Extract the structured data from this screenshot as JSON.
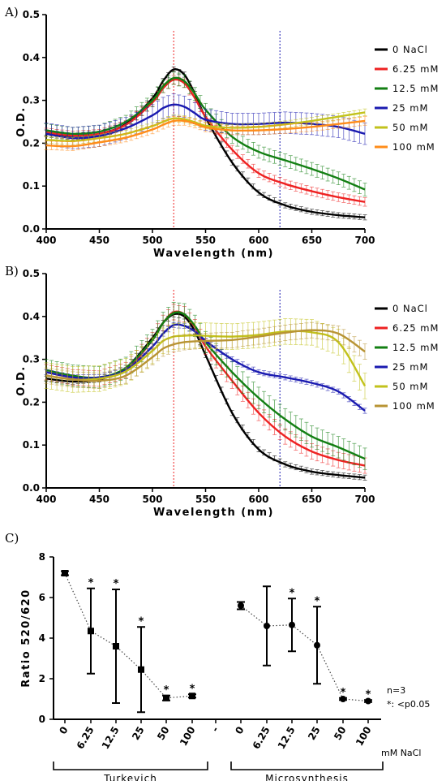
{
  "colors": {
    "0 NaCl": "#000000",
    "6.25 mM": "#ee2222",
    "12.5 mM": "#137f13",
    "25 mM": "#1a1ab0",
    "50 mM": "#c2c21c",
    "100 mM A": "#ff8c1a",
    "100 mM B": "#b89434"
  },
  "chart_data": [
    {
      "type": "line",
      "panel": "A)",
      "xlabel": "Wavelength (nm)",
      "ylabel": "O.D.",
      "xlim": [
        400,
        700
      ],
      "ylim": [
        0,
        0.5
      ],
      "xticks": [
        "400",
        "450",
        "500",
        "550",
        "600",
        "650",
        "700"
      ],
      "yticks": [
        "0.0",
        "0.1",
        "0.2",
        "0.3",
        "0.4",
        "0.5"
      ],
      "reference_lines": [
        520,
        620
      ],
      "legend_position": "right",
      "x": [
        400,
        425,
        450,
        475,
        500,
        510,
        520,
        530,
        540,
        550,
        575,
        600,
        625,
        650,
        675,
        700
      ],
      "series": [
        {
          "name": "0 NaCl",
          "color_key": "0 NaCl",
          "values": [
            0.225,
            0.217,
            0.222,
            0.245,
            0.305,
            0.345,
            0.372,
            0.36,
            0.315,
            0.26,
            0.155,
            0.085,
            0.055,
            0.04,
            0.032,
            0.027
          ],
          "err": 0.006
        },
        {
          "name": "6.25 mM",
          "color_key": "6.25 mM",
          "values": [
            0.225,
            0.218,
            0.222,
            0.243,
            0.295,
            0.328,
            0.348,
            0.34,
            0.305,
            0.262,
            0.185,
            0.13,
            0.105,
            0.088,
            0.074,
            0.063
          ],
          "err": 0.01
        },
        {
          "name": "12.5 mM",
          "color_key": "12.5 mM",
          "values": [
            0.23,
            0.222,
            0.227,
            0.25,
            0.3,
            0.333,
            0.352,
            0.345,
            0.315,
            0.278,
            0.215,
            0.18,
            0.16,
            0.14,
            0.118,
            0.092
          ],
          "err": 0.015
        },
        {
          "name": "25 mM",
          "color_key": "25 mM",
          "values": [
            0.222,
            0.212,
            0.217,
            0.235,
            0.265,
            0.282,
            0.29,
            0.285,
            0.27,
            0.255,
            0.245,
            0.245,
            0.248,
            0.245,
            0.238,
            0.222
          ],
          "err": 0.025
        },
        {
          "name": "50 mM",
          "color_key": "50 mM",
          "values": [
            0.208,
            0.205,
            0.212,
            0.222,
            0.24,
            0.25,
            0.258,
            0.256,
            0.249,
            0.241,
            0.236,
            0.238,
            0.244,
            0.252,
            0.262,
            0.272
          ],
          "err": 0.008
        },
        {
          "name": "100 mM",
          "color_key": "100 mM A",
          "values": [
            0.195,
            0.193,
            0.202,
            0.213,
            0.232,
            0.243,
            0.252,
            0.252,
            0.246,
            0.237,
            0.23,
            0.23,
            0.233,
            0.238,
            0.245,
            0.252
          ],
          "err": 0.01
        }
      ]
    },
    {
      "type": "line",
      "panel": "B)",
      "xlabel": "Wavelength (nm)",
      "ylabel": "O.D.",
      "xlim": [
        400,
        700
      ],
      "ylim": [
        0,
        0.5
      ],
      "xticks": [
        "400",
        "450",
        "500",
        "550",
        "600",
        "650",
        "700"
      ],
      "yticks": [
        "0.0",
        "0.1",
        "0.2",
        "0.3",
        "0.4",
        "0.5"
      ],
      "reference_lines": [
        520,
        620
      ],
      "legend_position": "right",
      "x": [
        400,
        425,
        450,
        475,
        500,
        510,
        520,
        530,
        540,
        550,
        575,
        600,
        625,
        650,
        675,
        700
      ],
      "series": [
        {
          "name": "0 NaCl",
          "color_key": "0 NaCl",
          "values": [
            0.255,
            0.248,
            0.253,
            0.28,
            0.35,
            0.385,
            0.405,
            0.4,
            0.365,
            0.31,
            0.175,
            0.09,
            0.055,
            0.038,
            0.03,
            0.024
          ],
          "err": 0.006
        },
        {
          "name": "6.25 mM",
          "color_key": "6.25 mM",
          "values": [
            0.27,
            0.258,
            0.255,
            0.275,
            0.345,
            0.385,
            0.41,
            0.405,
            0.375,
            0.33,
            0.25,
            0.175,
            0.12,
            0.085,
            0.065,
            0.052
          ],
          "err": 0.018
        },
        {
          "name": "12.5 mM",
          "color_key": "12.5 mM",
          "values": [
            0.275,
            0.262,
            0.258,
            0.28,
            0.345,
            0.385,
            0.408,
            0.405,
            0.378,
            0.34,
            0.27,
            0.21,
            0.16,
            0.12,
            0.095,
            0.068
          ],
          "err": 0.025
        },
        {
          "name": "25 mM",
          "color_key": "25 mM",
          "values": [
            0.27,
            0.258,
            0.258,
            0.275,
            0.33,
            0.36,
            0.38,
            0.378,
            0.365,
            0.343,
            0.3,
            0.27,
            0.258,
            0.245,
            0.225,
            0.18
          ],
          "err": 0.006
        },
        {
          "name": "50 mM",
          "color_key": "50 mM",
          "values": [
            0.262,
            0.253,
            0.255,
            0.272,
            0.32,
            0.343,
            0.353,
            0.355,
            0.356,
            0.355,
            0.353,
            0.357,
            0.365,
            0.363,
            0.34,
            0.238
          ],
          "err": 0.03
        },
        {
          "name": "100 mM",
          "color_key": "100 mM B",
          "values": [
            0.262,
            0.253,
            0.25,
            0.262,
            0.305,
            0.325,
            0.335,
            0.34,
            0.342,
            0.343,
            0.345,
            0.353,
            0.362,
            0.368,
            0.36,
            0.318
          ],
          "err": 0.018
        }
      ]
    },
    {
      "type": "scatter",
      "panel": "C)",
      "ylabel": "Ratio 520/620",
      "ylim": [
        0,
        8
      ],
      "yticks": [
        "0",
        "2",
        "4",
        "6",
        "8"
      ],
      "unit_label": "mM NaCl",
      "note_lines": [
        "n=3",
        "*: <p0.05"
      ],
      "groups": [
        {
          "name": "Turkevich",
          "marker": "square",
          "categories": [
            "0",
            "6.25",
            "12.5",
            "25",
            "50",
            "100"
          ],
          "values": [
            7.2,
            4.35,
            3.6,
            2.45,
            1.05,
            1.15
          ],
          "err": [
            0.1,
            2.1,
            2.8,
            2.1,
            0.12,
            0.08
          ],
          "sig": [
            "",
            "*",
            "*",
            "*",
            "*",
            "*"
          ]
        },
        {
          "name": "Microsynthesis",
          "marker": "circle",
          "categories": [
            "0",
            "6.25",
            "12.5",
            "25",
            "50",
            "100"
          ],
          "values": [
            5.6,
            4.6,
            4.65,
            3.65,
            1.0,
            0.9
          ],
          "err": [
            0.18,
            1.95,
            1.3,
            1.9,
            0.05,
            0.05
          ],
          "sig": [
            "",
            "",
            "*",
            "*",
            "*",
            "*"
          ]
        }
      ],
      "separator_label": "-"
    }
  ]
}
